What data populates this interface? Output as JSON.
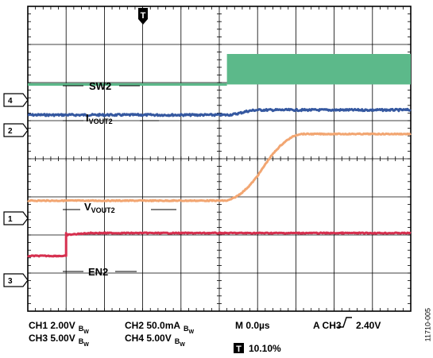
{
  "chart_data": {
    "type": "line",
    "title": "",
    "xlabel": "",
    "ylabel": "",
    "x_divisions": 10,
    "y_divisions": 8,
    "grid": true,
    "trigger_marker": "T",
    "channels": [
      {
        "id": "4",
        "name": "SW2",
        "color": "#5cb98a",
        "marker_level_div": 5.95,
        "events": [
          {
            "x_div": 5.2,
            "type": "switching",
            "high_level_div": 6.75,
            "low_level_div": 5.95
          }
        ]
      },
      {
        "id": "2",
        "name": "IVOUT2",
        "name_main": "I",
        "name_sub": "VOUT2",
        "color": "#3558a0",
        "marker_level_div": 5.15,
        "events": [
          {
            "x_div": 5.2,
            "type": "ramp",
            "from_level_div": 5.15,
            "to_level_div": 5.28,
            "end_x_div": 6.0
          }
        ]
      },
      {
        "id": "1",
        "name": "VVOUT2",
        "name_main": "V",
        "name_sub": "VOUT2",
        "color": "#f2a672",
        "marker_level_div": 2.9,
        "events": [
          {
            "x_div": 5.2,
            "type": "ramp",
            "from_level_div": 2.9,
            "to_level_div": 4.65,
            "end_x_div": 7.1
          }
        ]
      },
      {
        "id": "3",
        "name": "EN2",
        "color": "#d6304f",
        "marker_level_div": 1.45,
        "events": [
          {
            "x_div": 1.0,
            "type": "step",
            "from_level_div": 1.45,
            "to_level_div": 2.05
          }
        ]
      }
    ]
  },
  "settings": {
    "ch1": "CH1 2.00V",
    "ch2": "CH2 50.0mA",
    "ch3": "CH3 5.00V",
    "ch4": "CH4 5.00V",
    "bw": "B",
    "bw_sub": "W",
    "timebase": "M 0.0µs",
    "trigger": "A  CH3",
    "trigger_level": "2.40V",
    "trigger_position": "10.10%"
  },
  "figure_id": "11710-005"
}
